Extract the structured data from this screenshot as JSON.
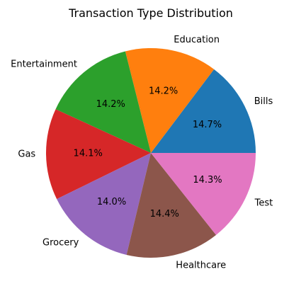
{
  "chart_data": {
    "type": "pie",
    "title": "Transaction Type Distribution",
    "slices": [
      {
        "label": "Bills",
        "value": 14.7,
        "pct_label": "14.7%",
        "color": "#1f77b4"
      },
      {
        "label": "Education",
        "value": 14.2,
        "pct_label": "14.2%",
        "color": "#ff7f0e"
      },
      {
        "label": "Entertainment",
        "value": 14.2,
        "pct_label": "14.2%",
        "color": "#2ca02c"
      },
      {
        "label": "Gas",
        "value": 14.1,
        "pct_label": "14.1%",
        "color": "#d62728"
      },
      {
        "label": "Grocery",
        "value": 14.0,
        "pct_label": "14.0%",
        "color": "#9467bd"
      },
      {
        "label": "Healthcare",
        "value": 14.4,
        "pct_label": "14.4%",
        "color": "#8c564b"
      },
      {
        "label": "Test",
        "value": 14.3,
        "pct_label": "14.3%",
        "color": "#e377c2"
      }
    ],
    "start_angle_deg": 0,
    "direction": "counterclockwise",
    "legend": "none"
  }
}
